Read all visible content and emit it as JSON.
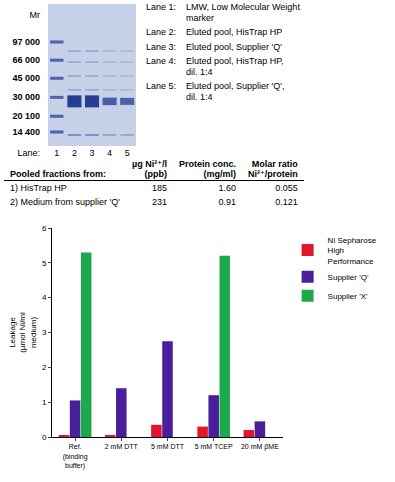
{
  "gel": {
    "axis_title": "Mr",
    "markers": [
      {
        "value": 97000,
        "label": "97 000"
      },
      {
        "value": 66000,
        "label": "66 000"
      },
      {
        "value": 45000,
        "label": "45 000"
      },
      {
        "value": 30000,
        "label": "30 000"
      },
      {
        "value": 20100,
        "label": "20 100"
      },
      {
        "value": 14400,
        "label": "14 400"
      }
    ],
    "lane_title": "Lane:",
    "lanes": [
      "1",
      "2",
      "3",
      "4",
      "5"
    ],
    "legend": [
      {
        "lane": "Lane 1:",
        "text": "LMW, Low Molecular Weight marker"
      },
      {
        "lane": "Lane 2:",
        "text": "Eluted pool, HisTrap HP"
      },
      {
        "lane": "Lane 3:",
        "text": "Eluted pool, Supplier 'Q'"
      },
      {
        "lane": "Lane 4:",
        "text": "Eluted pool, HisTrap HP, dil. 1:4"
      },
      {
        "lane": "Lane 5:",
        "text": "Eluted pool, Supplier 'Q', dil. 1:4"
      }
    ]
  },
  "table": {
    "header": [
      [
        "Pooled fractions from:"
      ],
      [
        "µg Ni²⁺/l",
        "(ppb)"
      ],
      [
        "Protein conc.",
        "(mg/ml)"
      ],
      [
        "Molar ratio",
        "Ni²⁺/protein"
      ]
    ],
    "rows": [
      [
        "1) HisTrap HP",
        "185",
        "1.60",
        "0.055"
      ],
      [
        "2) Medium from supplier 'Q'",
        "231",
        "0.91",
        "0.121"
      ]
    ]
  },
  "chart_data": {
    "type": "bar",
    "y_label": "Leakage (µmol Ni/ml medium)",
    "categories": [
      "Ref. (binding buffer)",
      "2 mM DTT",
      "5 mM DTT",
      "5 mM TCEP",
      "20 mM βME"
    ],
    "series": [
      {
        "name": "Ni Sepharose High Performance",
        "color": "#e3152b",
        "values": [
          0.05,
          0.05,
          0.35,
          0.3,
          0.2
        ]
      },
      {
        "name": "Supplier 'Q'",
        "color": "#4a1f9c",
        "values": [
          1.05,
          1.4,
          2.75,
          1.2,
          0.45
        ]
      },
      {
        "name": "Supplier 'X'",
        "color": "#1ea84c",
        "values": [
          5.3,
          null,
          null,
          5.2,
          null
        ]
      }
    ],
    "ylim": [
      0,
      6
    ],
    "yticks": [
      0,
      1,
      2,
      3,
      4,
      5,
      6
    ],
    "grid": false,
    "legend": "top right"
  }
}
